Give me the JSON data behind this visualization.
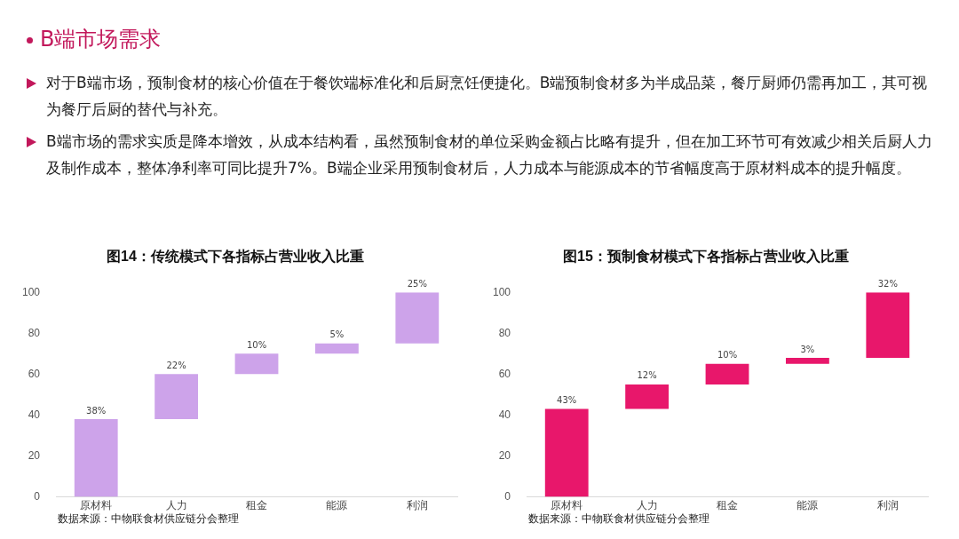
{
  "chart_data": [
    {
      "type": "other",
      "title": "B端市场需求",
      "annotations": [
        "对于B端市场，预制食材的核心价值在于餐饮端标准化和后厨烹饪便捷化。B端预制食材多为半成品菜，餐厅厨师仍需再加工，其可视为餐厅后厨的替代与补充。",
        "B端市场的需求实质是降本增效，从成本结构看，虽然预制食材的单位采购金额占比略有提升，但在加工环节可有效减少相关后厨人力及制作成本，整体净利率可同比提升7%。B端企业采用预制食材后，人力成本与能源成本的节省幅度高于原材料成本的提升幅度。"
      ]
    },
    {
      "type": "bar",
      "title": "图14：传统模式下各指标占营业收入比重",
      "categories": [
        "原材料",
        "人力",
        "租金",
        "能源",
        "利润"
      ],
      "values": [
        38,
        22,
        10,
        5,
        25
      ],
      "base": [
        0,
        38,
        60,
        70,
        75
      ],
      "value_labels": [
        "38%",
        "22%",
        "10%",
        "5%",
        "25%"
      ],
      "color": "#cda3ea",
      "ylim": [
        0,
        100
      ],
      "yticks": [
        0,
        20,
        40,
        60,
        80,
        100
      ],
      "annotations": [
        "数据来源：中物联食材供应链分会整理"
      ]
    },
    {
      "type": "bar",
      "title": "图15：预制食材模式下各指标占营业收入比重",
      "categories": [
        "原材料",
        "人力",
        "租金",
        "能源",
        "利润"
      ],
      "values": [
        43,
        12,
        10,
        3,
        32
      ],
      "base": [
        0,
        43,
        55,
        65,
        68
      ],
      "value_labels": [
        "43%",
        "12%",
        "10%",
        "3%",
        "32%"
      ],
      "color": "#e8176b",
      "ylim": [
        0,
        100
      ],
      "yticks": [
        0,
        20,
        40,
        60,
        80,
        100
      ],
      "annotations": [
        "数据来源：中物联食材供应链分会整理"
      ]
    }
  ]
}
